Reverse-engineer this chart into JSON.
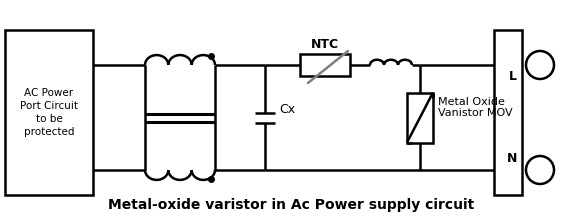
{
  "title": "Metal-oxide varistor in Ac Power supply circuit",
  "title_fontsize": 10,
  "bg_color": "#ffffff",
  "line_color": "#000000",
  "line_width": 1.8,
  "label_ac": "AC Power\nPort Circuit\nto be\nprotected",
  "label_ntc": "NTC",
  "label_cx": "Cx",
  "label_mov": "Metal Oxide\nVanistor MOV",
  "label_L": "L",
  "label_N": "N",
  "figsize": [
    5.82,
    2.2
  ],
  "dpi": 100
}
